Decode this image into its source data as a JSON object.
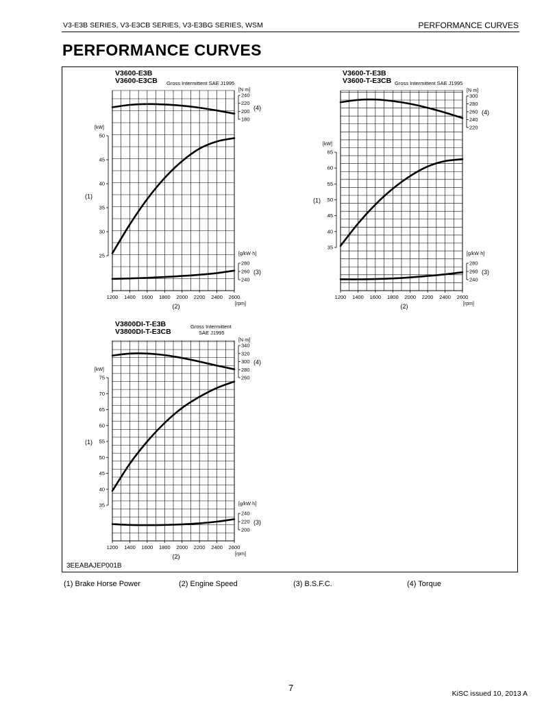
{
  "header": {
    "series": "V3-E3B SERIES, V3-E3CB SERIES, V3-E3BG SERIES, WSM",
    "section": "PERFORMANCE CURVES"
  },
  "page_title": "PERFORMANCE CURVES",
  "figure_code": "3EEABAJEP001B",
  "legend": [
    {
      "label": "(1)  Brake Horse Power"
    },
    {
      "label": "(2)  Engine Speed"
    },
    {
      "label": "(3)  B.S.F.C."
    },
    {
      "label": "(4)  Torque"
    }
  ],
  "footer": {
    "page_number": "7",
    "issued": "KiSC issued 10, 2013 A"
  },
  "chart_data": [
    {
      "type": "line",
      "model_line1": "V3600-E3B",
      "model_line2": "V3600-E3CB",
      "rating_line1": "Gross Intermittent SAE J1995",
      "rating_line2": "",
      "x": [
        1200,
        1400,
        1600,
        1800,
        2000,
        2200,
        2400,
        2600
      ],
      "x_tick_labels": [
        "1200",
        "1400",
        "1600",
        "1800",
        "2000",
        "2200",
        "2400",
        "2600"
      ],
      "xlabel_unit": "[rpm]",
      "xlabel_id": "(2)",
      "power": {
        "id": "(1)",
        "unit": "[kW]",
        "ticks": [
          "25",
          "30",
          "35",
          "40",
          "45",
          "50"
        ],
        "range": [
          25,
          50
        ],
        "points": [
          [
            1200,
            25.5
          ],
          [
            1400,
            31.5
          ],
          [
            1600,
            36.8
          ],
          [
            1800,
            41.2
          ],
          [
            2000,
            44.7
          ],
          [
            2200,
            47.3
          ],
          [
            2400,
            48.8
          ],
          [
            2600,
            49.5
          ]
        ]
      },
      "torque": {
        "id": "(4)",
        "unit": "[N·m]",
        "ticks": [
          "180",
          "200",
          "220",
          "240"
        ],
        "range": [
          180,
          240
        ],
        "points": [
          [
            1200,
            210
          ],
          [
            1400,
            216
          ],
          [
            1600,
            218
          ],
          [
            1800,
            217
          ],
          [
            2000,
            214
          ],
          [
            2200,
            209
          ],
          [
            2400,
            202
          ],
          [
            2600,
            194
          ]
        ]
      },
      "bsfc": {
        "id": "(3)",
        "unit": "[g/kW·h]",
        "ticks": [
          "240",
          "260",
          "280"
        ],
        "range": [
          240,
          280
        ],
        "points": [
          [
            1200,
            242
          ],
          [
            1400,
            243
          ],
          [
            1600,
            244.5
          ],
          [
            1800,
            246.5
          ],
          [
            2000,
            249
          ],
          [
            2200,
            252
          ],
          [
            2400,
            256
          ],
          [
            2600,
            262
          ]
        ]
      }
    },
    {
      "type": "line",
      "model_line1": "V3600-T-E3B",
      "model_line2": "V3600-T-E3CB",
      "rating_line1": "Gross Intermittent SAE J1995",
      "rating_line2": "",
      "x": [
        1200,
        1400,
        1600,
        1800,
        2000,
        2200,
        2400,
        2600
      ],
      "x_tick_labels": [
        "1200",
        "1400",
        "1600",
        "1800",
        "2000",
        "2200",
        "2400",
        "2600"
      ],
      "xlabel_unit": "[rpm]",
      "xlabel_id": "(2)",
      "power": {
        "id": "(1)",
        "unit": "[kW]",
        "ticks": [
          "35",
          "40",
          "45",
          "50",
          "55",
          "60",
          "65"
        ],
        "range": [
          35,
          65
        ],
        "points": [
          [
            1200,
            35.5
          ],
          [
            1400,
            42.5
          ],
          [
            1600,
            48.5
          ],
          [
            1800,
            53.5
          ],
          [
            2000,
            57.5
          ],
          [
            2200,
            60.5
          ],
          [
            2400,
            62.2
          ],
          [
            2600,
            62.8
          ]
        ]
      },
      "torque": {
        "id": "(4)",
        "unit": "[N·m]",
        "ticks": [
          "220",
          "240",
          "260",
          "280",
          "300"
        ],
        "range": [
          220,
          300
        ],
        "points": [
          [
            1200,
            284
          ],
          [
            1400,
            290
          ],
          [
            1600,
            291
          ],
          [
            1800,
            287
          ],
          [
            2000,
            280
          ],
          [
            2200,
            270
          ],
          [
            2400,
            258
          ],
          [
            2600,
            244
          ]
        ]
      },
      "bsfc": {
        "id": "(3)",
        "unit": "[g/kW·h]",
        "ticks": [
          "240",
          "260",
          "280"
        ],
        "range": [
          240,
          280
        ],
        "points": [
          [
            1200,
            241
          ],
          [
            1400,
            240.8
          ],
          [
            1600,
            241.5
          ],
          [
            1800,
            243
          ],
          [
            2000,
            245.5
          ],
          [
            2200,
            249
          ],
          [
            2400,
            253
          ],
          [
            2600,
            258
          ]
        ]
      }
    },
    {
      "type": "line",
      "model_line1": "V3800DI-T-E3B",
      "model_line2": "V3800DI-T-E3CB",
      "rating_line1": "Gross Intermittent",
      "rating_line2": "SAE J1995",
      "x": [
        1200,
        1400,
        1600,
        1800,
        2000,
        2200,
        2400,
        2600
      ],
      "x_tick_labels": [
        "1200",
        "1400",
        "1600",
        "1800",
        "2000",
        "2200",
        "2400",
        "2600"
      ],
      "xlabel_unit": "[rpm]",
      "xlabel_id": "(2)",
      "power": {
        "id": "(1)",
        "unit": "[kW]",
        "ticks": [
          "35",
          "40",
          "45",
          "50",
          "55",
          "60",
          "65",
          "70",
          "75"
        ],
        "range": [
          35,
          75
        ],
        "points": [
          [
            1200,
            39.5
          ],
          [
            1400,
            48
          ],
          [
            1600,
            55
          ],
          [
            1800,
            60.8
          ],
          [
            2000,
            65.5
          ],
          [
            2200,
            69
          ],
          [
            2400,
            71.8
          ],
          [
            2600,
            73.8
          ]
        ]
      },
      "torque": {
        "id": "(4)",
        "unit": "[N·m]",
        "ticks": [
          "260",
          "280",
          "300",
          "320",
          "340"
        ],
        "range": [
          260,
          340
        ],
        "points": [
          [
            1200,
            315
          ],
          [
            1400,
            320
          ],
          [
            1600,
            320
          ],
          [
            1800,
            316
          ],
          [
            2000,
            309
          ],
          [
            2200,
            300
          ],
          [
            2400,
            290
          ],
          [
            2600,
            281
          ]
        ]
      },
      "bsfc": {
        "id": "(3)",
        "unit": "[g/kW·h]",
        "ticks": [
          "200",
          "220",
          "240"
        ],
        "range": [
          200,
          240
        ],
        "points": [
          [
            1200,
            214
          ],
          [
            1400,
            212
          ],
          [
            1600,
            211.5
          ],
          [
            1800,
            212
          ],
          [
            2000,
            213.5
          ],
          [
            2200,
            216
          ],
          [
            2400,
            220
          ],
          [
            2600,
            226
          ]
        ]
      }
    }
  ]
}
